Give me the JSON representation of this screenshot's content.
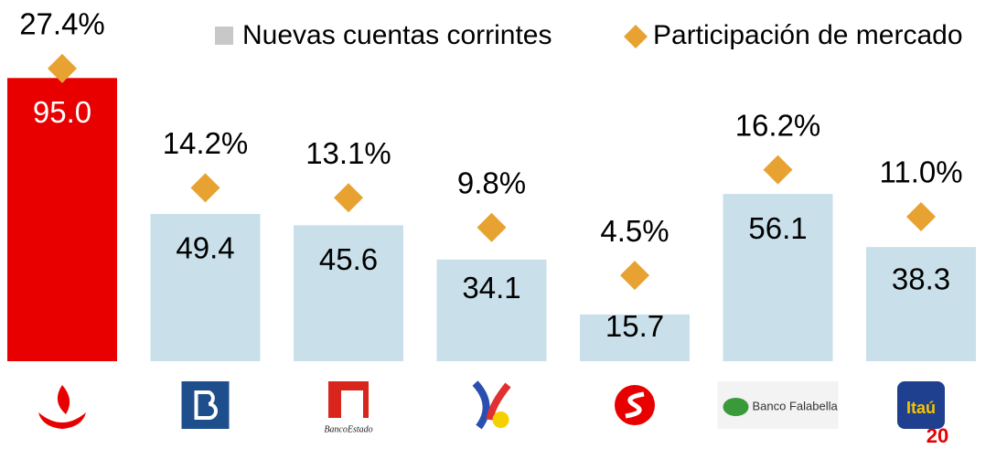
{
  "chart_data": {
    "type": "bar",
    "categories": [
      null,
      null,
      "BancoEstado",
      null,
      null,
      "Banco Falabella",
      "Itaú"
    ],
    "series": [
      {
        "name": "Nuevas cuentas corrintes",
        "type": "bar",
        "color": "#c9e0ea",
        "legend_color": "#c8c8c8",
        "colors": [
          "#e80000",
          "#c9e0ea",
          "#c9e0ea",
          "#c9e0ea",
          "#c9e0ea",
          "#c9e0ea",
          "#c9e0ea"
        ],
        "values": [
          95.0,
          49.4,
          45.6,
          34.1,
          15.7,
          56.1,
          38.3
        ],
        "value_labels": [
          "95.0",
          "49.4",
          "45.6",
          "34.1",
          "15.7",
          "56.1",
          "38.3"
        ]
      },
      {
        "name": "Participación de mercado",
        "type": "scatter",
        "axis": "y2",
        "color": "#e8a232",
        "values": [
          27.4,
          14.2,
          13.1,
          9.8,
          4.5,
          16.2,
          11.0
        ],
        "value_labels": [
          "27.4%",
          "14.2%",
          "13.1%",
          "9.8%",
          "4.5%",
          "16.2%",
          "11.0%"
        ]
      }
    ],
    "ylim": [
      0,
      100
    ],
    "y2lim": [
      -5,
      28
    ],
    "page_number": "20"
  }
}
